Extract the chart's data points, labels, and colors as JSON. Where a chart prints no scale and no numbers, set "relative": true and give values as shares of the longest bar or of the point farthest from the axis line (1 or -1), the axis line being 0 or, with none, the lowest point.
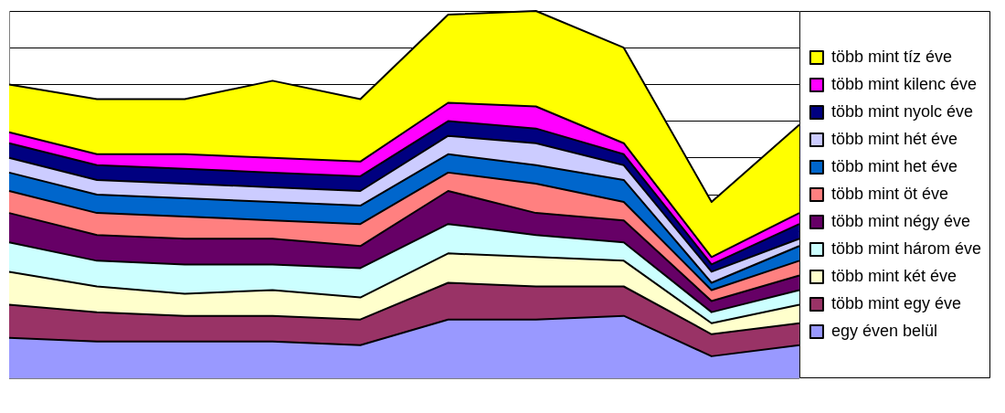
{
  "chart_data": {
    "type": "area",
    "stacked": true,
    "relative": true,
    "grid": "y",
    "legend": "right",
    "categories": [
      null,
      null,
      null,
      null,
      null,
      null,
      null,
      null,
      null,
      null
    ],
    "series": [
      {
        "name": "egy éven belül",
        "color": "#9999ff",
        "values": [
          0.11,
          0.1,
          0.1,
          0.1,
          0.09,
          0.16,
          0.16,
          0.17,
          0.06,
          0.09
        ]
      },
      {
        "name": "több mint egy éve",
        "color": "#993366",
        "values": [
          0.09,
          0.08,
          0.07,
          0.07,
          0.07,
          0.1,
          0.09,
          0.08,
          0.06,
          0.06
        ]
      },
      {
        "name": "több mint két éve",
        "color": "#ffffcc",
        "values": [
          0.09,
          0.07,
          0.06,
          0.07,
          0.06,
          0.08,
          0.08,
          0.07,
          0.03,
          0.05
        ]
      },
      {
        "name": "több mint három éve",
        "color": "#ccffff",
        "values": [
          0.08,
          0.07,
          0.08,
          0.07,
          0.08,
          0.08,
          0.06,
          0.05,
          0.03,
          0.04
        ]
      },
      {
        "name": "több mint négy éve",
        "color": "#660066",
        "values": [
          0.08,
          0.07,
          0.07,
          0.07,
          0.06,
          0.09,
          0.06,
          0.06,
          0.03,
          0.04
        ]
      },
      {
        "name": "több mint öt éve",
        "color": "#ff8080",
        "values": [
          0.06,
          0.06,
          0.06,
          0.05,
          0.06,
          0.05,
          0.08,
          0.05,
          0.03,
          0.04
        ]
      },
      {
        "name": "több mint het éve",
        "color": "#0066cc",
        "values": [
          0.05,
          0.05,
          0.05,
          0.05,
          0.05,
          0.05,
          0.05,
          0.06,
          0.02,
          0.04
        ]
      },
      {
        "name": "több mint hét éve",
        "color": "#ccccff",
        "values": [
          0.04,
          0.04,
          0.04,
          0.04,
          0.04,
          0.05,
          0.06,
          0.04,
          0.03,
          0.02
        ]
      },
      {
        "name": "több mint nyolc éve",
        "color": "#000080",
        "values": [
          0.04,
          0.04,
          0.04,
          0.04,
          0.04,
          0.04,
          0.04,
          0.03,
          0.02,
          0.04
        ]
      },
      {
        "name": "több mint kilenc éve",
        "color": "#ff00ff",
        "values": [
          0.03,
          0.03,
          0.04,
          0.04,
          0.04,
          0.05,
          0.06,
          0.03,
          0.02,
          0.03
        ]
      },
      {
        "name": "több mint tíz éve",
        "color": "#ffff00",
        "values": [
          0.13,
          0.15,
          0.15,
          0.21,
          0.17,
          0.24,
          0.26,
          0.26,
          0.15,
          0.24
        ]
      }
    ]
  }
}
